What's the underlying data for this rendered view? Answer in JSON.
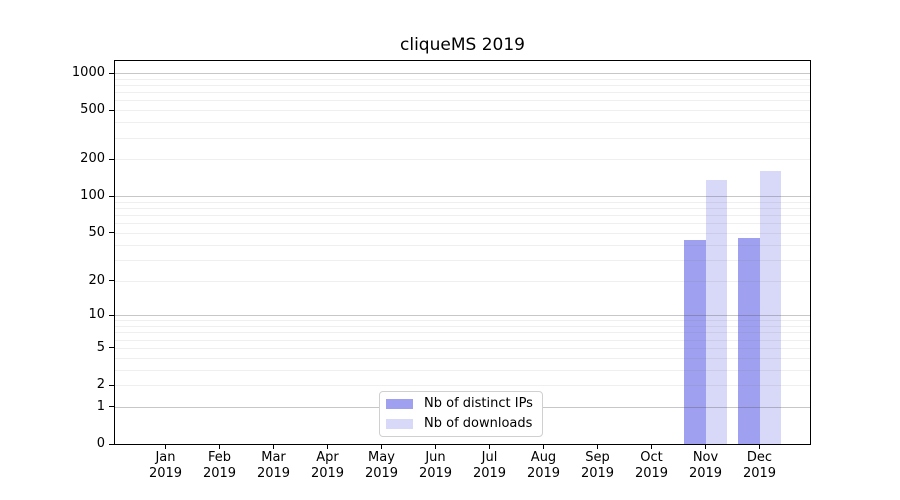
{
  "chart_data": {
    "type": "bar",
    "title": "cliqueMS 2019",
    "x_year": "2019",
    "categories": [
      "Jan",
      "Feb",
      "Mar",
      "Apr",
      "May",
      "Jun",
      "Jul",
      "Aug",
      "Sep",
      "Oct",
      "Nov",
      "Dec"
    ],
    "series": [
      {
        "name": "Nb of distinct IPs",
        "color": "#a0a0f0",
        "values": [
          0,
          0,
          0,
          0,
          0,
          0,
          0,
          0,
          0,
          0,
          44,
          45
        ]
      },
      {
        "name": "Nb of downloads",
        "color": "#d8d8f8",
        "values": [
          0,
          0,
          0,
          0,
          0,
          0,
          0,
          0,
          0,
          0,
          135,
          160
        ]
      }
    ],
    "y_axis": {
      "scale": "log1p",
      "ticks": [
        0,
        1,
        2,
        5,
        10,
        20,
        50,
        100,
        200,
        500,
        1000
      ],
      "major_gridlines": [
        1,
        10,
        100,
        1000
      ],
      "minor_gridlines": [
        2,
        3,
        4,
        5,
        6,
        7,
        8,
        9,
        20,
        30,
        40,
        50,
        60,
        70,
        80,
        90,
        200,
        300,
        400,
        500,
        600,
        700,
        800,
        900
      ],
      "ylim": [
        0,
        1270
      ]
    },
    "legend": {
      "position": "inside-bottom-center"
    },
    "colors": {
      "axis": "#000000",
      "text": "#000000",
      "grid_major": "#c9c9c9",
      "grid_minor": "#ececec",
      "legend_border": "#d0d0d0",
      "background": "#ffffff"
    }
  }
}
